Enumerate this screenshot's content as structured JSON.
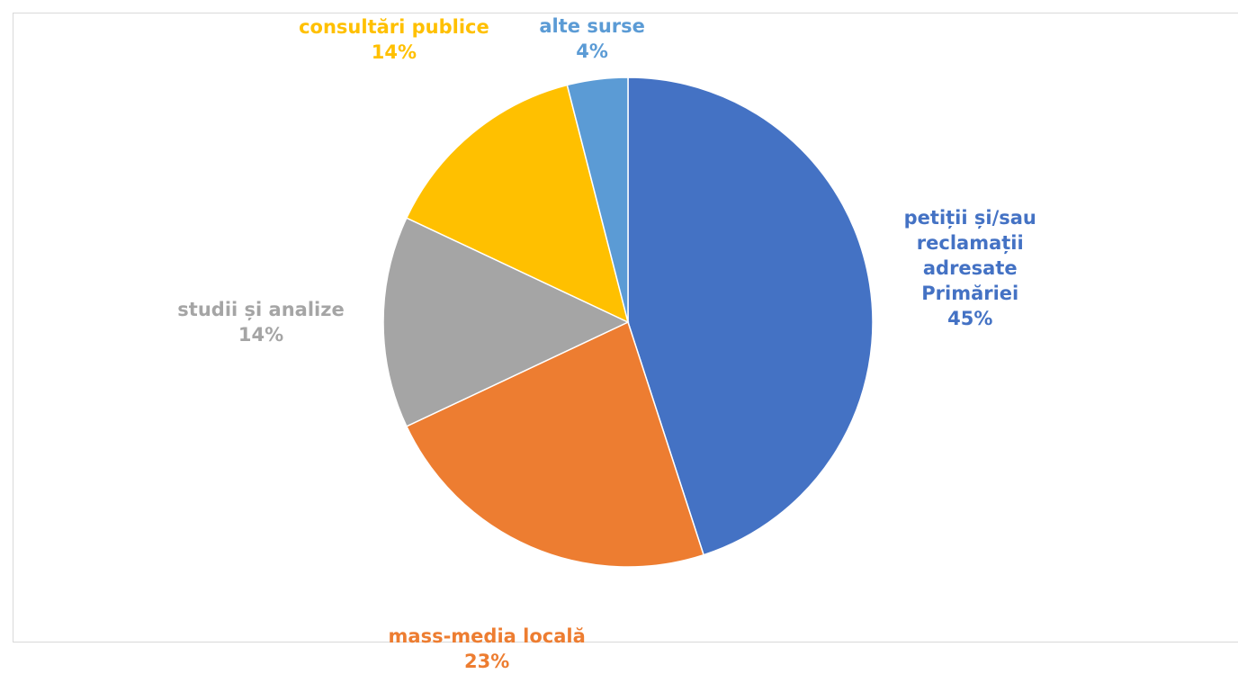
{
  "chart_data": {
    "type": "pie",
    "categories": [
      "petiții și/sau reclamații adresate Primăriei",
      "mass-media locală",
      "studii și analize",
      "consultări publice",
      "alte surse"
    ],
    "values": [
      45,
      23,
      14,
      14,
      4
    ],
    "value_labels": [
      "45%",
      "23%",
      "14%",
      "14%",
      "4%"
    ],
    "colors": [
      "#4472c4",
      "#ed7d31",
      "#a5a5a5",
      "#ffc000",
      "#5b9bd5"
    ]
  }
}
